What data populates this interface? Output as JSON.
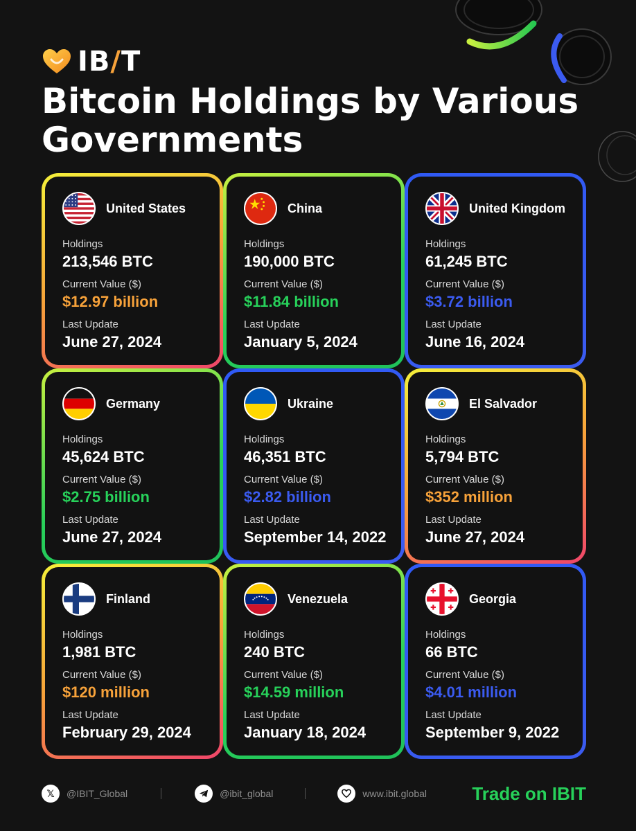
{
  "brand": {
    "logo_text_a": "IB",
    "logo_text_b": "/",
    "logo_text_c": "T"
  },
  "title": "Bitcoin Holdings by Various Governments",
  "labels": {
    "holdings": "Holdings",
    "value": "Current Value ($)",
    "update": "Last Update"
  },
  "colors": {
    "orange": "#f7a23a",
    "green": "#27d15a",
    "blue": "#3b5bf0"
  },
  "cards": [
    {
      "country": "United States",
      "flag": "us-flag-icon",
      "holdings": "213,546 BTC",
      "value": "$12.97 billion",
      "value_color": "#f7a23a",
      "update": "June 27, 2024",
      "border": "warm"
    },
    {
      "country": "China",
      "flag": "china-flag-icon",
      "holdings": "190,000 BTC",
      "value": "$11.84 billion",
      "value_color": "#27d15a",
      "update": "January 5, 2024",
      "border": "green"
    },
    {
      "country": "United Kingdom",
      "flag": "uk-flag-icon",
      "holdings": "61,245 BTC",
      "value": "$3.72 billion",
      "value_color": "#3b5bf0",
      "update": "June 16, 2024",
      "border": "blue"
    },
    {
      "country": "Germany",
      "flag": "germany-flag-icon",
      "holdings": "45,624 BTC",
      "value": "$2.75 billion",
      "value_color": "#27d15a",
      "update": "June 27, 2024",
      "border": "green"
    },
    {
      "country": "Ukraine",
      "flag": "ukraine-flag-icon",
      "holdings": "46,351 BTC",
      "value": "$2.82 billion",
      "value_color": "#3b5bf0",
      "update": "September 14, 2022",
      "border": "blue"
    },
    {
      "country": "El Salvador",
      "flag": "el-salvador-flag-icon",
      "holdings": "5,794 BTC",
      "value": "$352 million",
      "value_color": "#f7a23a",
      "update": "June 27, 2024",
      "border": "warm"
    },
    {
      "country": "Finland",
      "flag": "finland-flag-icon",
      "holdings": "1,981 BTC",
      "value": "$120 million",
      "value_color": "#f7a23a",
      "update": "February 29, 2024",
      "border": "warm"
    },
    {
      "country": "Venezuela",
      "flag": "venezuela-flag-icon",
      "holdings": "240 BTC",
      "value": "$14.59 million",
      "value_color": "#27d15a",
      "update": "January 18, 2024",
      "border": "green"
    },
    {
      "country": "Georgia",
      "flag": "georgia-flag-icon",
      "holdings": "66 BTC",
      "value": "$4.01 million",
      "value_color": "#3b5bf0",
      "update": "September 9, 2022",
      "border": "blue"
    }
  ],
  "footer": {
    "x_handle": "@IBIT_Global",
    "telegram_handle": "@ibit_global",
    "website": "www.ibit.global",
    "cta": "Trade on IBIT",
    "x_icon": "x-icon",
    "telegram_icon": "telegram-icon",
    "web_icon": "ibit-heart-icon"
  }
}
